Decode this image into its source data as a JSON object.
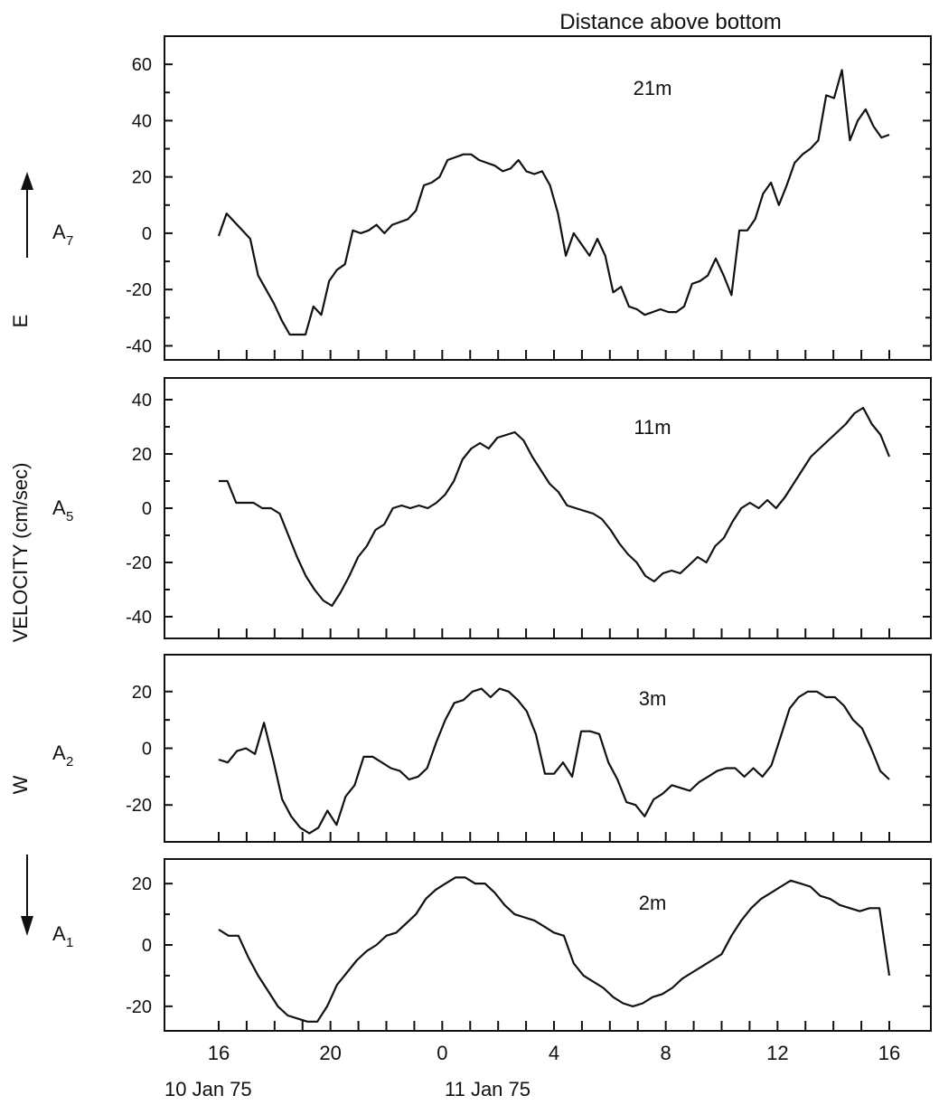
{
  "header": "Distance above bottom",
  "y_axis_title": "VELOCITY (cm/sec)",
  "direction_labels": {
    "east": "E",
    "west": "W"
  },
  "x_axis": {
    "ticks": [
      "16",
      "20",
      "0",
      "4",
      "8",
      "12",
      "16"
    ],
    "date_labels": [
      "10 Jan 75",
      "11 Jan 75"
    ]
  },
  "chart_data": [
    {
      "type": "line",
      "name": "A7",
      "panel_label": "A",
      "panel_sub": "7",
      "depth_label": "21m",
      "ylim": [
        -45,
        70
      ],
      "yticks": [
        "60",
        "40",
        "20",
        "0",
        "-20",
        "-40"
      ],
      "x_range": [
        "10 Jan 75 16",
        "11 Jan 75 16"
      ],
      "values": [
        -1,
        7,
        4,
        1,
        -2,
        -15,
        -20,
        -25,
        -31,
        -36,
        -36,
        -36,
        -26,
        -29,
        -17,
        -13,
        -11,
        1,
        0,
        1,
        3,
        0,
        3,
        4,
        5,
        8,
        17,
        18,
        20,
        26,
        27,
        28,
        28,
        26,
        25,
        24,
        22,
        23,
        26,
        22,
        21,
        22,
        17,
        7,
        -8,
        0,
        -4,
        -8,
        -2,
        -8,
        -21,
        -19,
        -26,
        -27,
        -29,
        -28,
        -27,
        -28,
        -28,
        -26,
        -18,
        -17,
        -15,
        -9,
        -15,
        -22,
        1,
        1,
        5,
        14,
        18,
        10,
        17,
        25,
        28,
        30,
        33,
        49,
        48,
        58,
        33,
        40,
        44,
        38,
        34,
        35
      ]
    },
    {
      "type": "line",
      "name": "A5",
      "panel_label": "A",
      "panel_sub": "5",
      "depth_label": "11m",
      "ylim": [
        -48,
        48
      ],
      "yticks": [
        "40",
        "20",
        "0",
        "-20",
        "-40"
      ],
      "x_range": [
        "10 Jan 75 16",
        "11 Jan 75 16"
      ],
      "values": [
        10,
        10,
        2,
        2,
        2,
        0,
        0,
        -2,
        -10,
        -18,
        -25,
        -30,
        -34,
        -36,
        -31,
        -25,
        -18,
        -14,
        -8,
        -6,
        0,
        1,
        0,
        1,
        0,
        2,
        5,
        10,
        18,
        22,
        24,
        22,
        26,
        27,
        28,
        25,
        19,
        14,
        9,
        6,
        1,
        0,
        -1,
        -2,
        -4,
        -8,
        -13,
        -17,
        -20,
        -25,
        -27,
        -24,
        -23,
        -24,
        -21,
        -18,
        -20,
        -14,
        -11,
        -5,
        0,
        2,
        0,
        3,
        0,
        4,
        9,
        14,
        19,
        22,
        25,
        28,
        31,
        35,
        37,
        31,
        27,
        19
      ]
    },
    {
      "type": "line",
      "name": "A2",
      "panel_label": "A",
      "panel_sub": "2",
      "depth_label": "3m",
      "ylim": [
        -33,
        33
      ],
      "yticks": [
        "20",
        "0",
        "-20"
      ],
      "x_range": [
        "10 Jan 75 16",
        "11 Jan 75 16"
      ],
      "values": [
        -4,
        -5,
        -1,
        0,
        -2,
        9,
        -4,
        -18,
        -24,
        -28,
        -30,
        -28,
        -22,
        -27,
        -17,
        -13,
        -3,
        -3,
        -5,
        -7,
        -8,
        -11,
        -10,
        -7,
        2,
        10,
        16,
        17,
        20,
        21,
        18,
        21,
        20,
        17,
        13,
        5,
        -9,
        -9,
        -5,
        -10,
        6,
        6,
        5,
        -5,
        -11,
        -19,
        -20,
        -24,
        -18,
        -16,
        -13,
        -14,
        -15,
        -12,
        -10,
        -8,
        -7,
        -7,
        -10,
        -7,
        -10,
        -6,
        4,
        14,
        18,
        20,
        20,
        18,
        18,
        15,
        10,
        7,
        0,
        -8,
        -11
      ]
    },
    {
      "type": "line",
      "name": "A1",
      "panel_label": "A",
      "panel_sub": "1",
      "depth_label": "2m",
      "ylim": [
        -28,
        28
      ],
      "yticks": [
        "20",
        "0",
        "-20"
      ],
      "x_range": [
        "10 Jan 75 16",
        "11 Jan 75 16"
      ],
      "values": [
        5,
        3,
        3,
        -4,
        -10,
        -15,
        -20,
        -23,
        -24,
        -25,
        -25,
        -20,
        -13,
        -9,
        -5,
        -2,
        0,
        3,
        4,
        7,
        10,
        15,
        18,
        20,
        22,
        22,
        20,
        20,
        17,
        13,
        10,
        9,
        8,
        6,
        4,
        3,
        -6,
        -10,
        -12,
        -14,
        -17,
        -19,
        -20,
        -19,
        -17,
        -16,
        -14,
        -11,
        -9,
        -7,
        -5,
        -3,
        3,
        8,
        12,
        15,
        17,
        19,
        21,
        20,
        19,
        16,
        15,
        13,
        12,
        11,
        12,
        12,
        -10
      ]
    }
  ]
}
